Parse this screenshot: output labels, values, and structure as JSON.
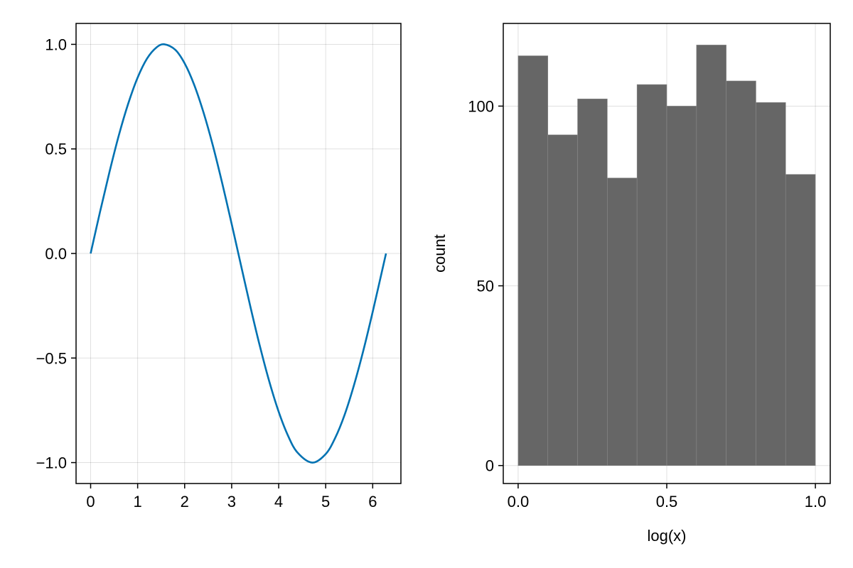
{
  "chart_data": [
    {
      "type": "line",
      "title": "",
      "xlabel": "",
      "ylabel": "",
      "xlim": [
        -0.31,
        6.6
      ],
      "ylim": [
        -1.1,
        1.1
      ],
      "xticks": [
        0,
        1,
        2,
        3,
        4,
        5,
        6
      ],
      "xtick_labels": [
        "0",
        "1",
        "2",
        "3",
        "4",
        "5",
        "6"
      ],
      "yticks": [
        -1.0,
        -0.5,
        0.0,
        0.5,
        1.0
      ],
      "ytick_labels": [
        "−1.0",
        "−0.5",
        "0.0",
        "0.5",
        "1.0"
      ],
      "grid": true,
      "series": [
        {
          "color": "#0072b2",
          "x": [
            0,
            0.2,
            0.4,
            0.6,
            0.8,
            1.0,
            1.2,
            1.4,
            1.5708,
            1.8,
            2.0,
            2.2,
            2.4,
            2.6,
            2.8,
            3.0,
            3.1416,
            3.4,
            3.6,
            3.8,
            4.0,
            4.2,
            4.4,
            4.7124,
            5.0,
            5.2,
            5.4,
            5.6,
            5.8,
            6.0,
            6.2832
          ],
          "y": [
            0.0,
            0.199,
            0.389,
            0.565,
            0.717,
            0.841,
            0.932,
            0.985,
            1.0,
            0.974,
            0.909,
            0.808,
            0.675,
            0.516,
            0.335,
            0.141,
            0.0,
            -0.256,
            -0.443,
            -0.612,
            -0.757,
            -0.872,
            -0.952,
            -1.0,
            -0.959,
            -0.883,
            -0.773,
            -0.631,
            -0.465,
            -0.279,
            0.0
          ]
        }
      ]
    },
    {
      "type": "bar",
      "title": "",
      "xlabel": "log(x)",
      "ylabel": "count",
      "xlim": [
        -0.05,
        1.05
      ],
      "ylim": [
        -5,
        123
      ],
      "xticks": [
        0.0,
        0.5,
        1.0
      ],
      "xtick_labels": [
        "0.0",
        "0.5",
        "1.0"
      ],
      "yticks": [
        0,
        50,
        100
      ],
      "ytick_labels": [
        "0",
        "50",
        "100"
      ],
      "grid": true,
      "bin_edges": [
        0.0,
        0.1,
        0.2,
        0.3,
        0.4,
        0.5,
        0.6,
        0.7,
        0.8,
        0.9,
        1.0
      ],
      "values": [
        114,
        92,
        102,
        80,
        106,
        100,
        117,
        107,
        101,
        81
      ],
      "color": "#666666"
    }
  ]
}
